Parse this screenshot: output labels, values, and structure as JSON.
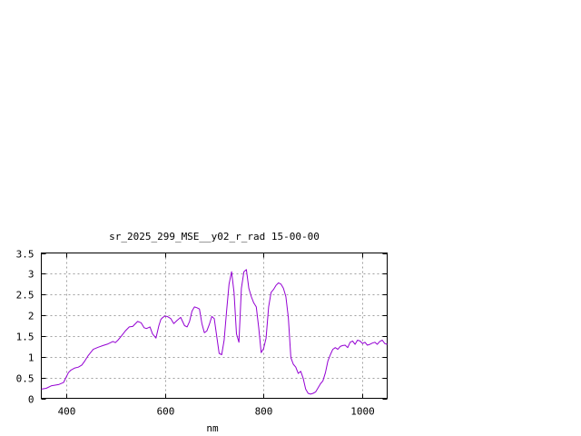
{
  "chart_data": {
    "type": "line",
    "title": "sr_2025_299_MSE__y02_r_rad 15-00-00",
    "xlabel": "nm",
    "ylabel": "",
    "xlim": [
      350,
      1050
    ],
    "ylim": [
      0,
      3.5
    ],
    "xticks": [
      400,
      600,
      800,
      1000
    ],
    "xtick_labels": [
      "400",
      "600",
      "800",
      "1000"
    ],
    "yticks": [
      0,
      0.5,
      1,
      1.5,
      2,
      2.5,
      3,
      3.5
    ],
    "ytick_labels": [
      "0",
      "0.5",
      "1",
      "1.5",
      "2",
      "2.5",
      "3",
      "3.5"
    ],
    "grid": true,
    "legend": "none",
    "series": [
      {
        "color": "#9400d3",
        "x": [
          350,
          360,
          370,
          385,
          395,
          400,
          405,
          410,
          418,
          425,
          432,
          438,
          445,
          455,
          465,
          475,
          485,
          495,
          500,
          505,
          512,
          520,
          528,
          535,
          545,
          552,
          558,
          563,
          570,
          575,
          582,
          588,
          592,
          596,
          600,
          605,
          612,
          618,
          625,
          632,
          640,
          645,
          650,
          655,
          660,
          665,
          670,
          675,
          680,
          685,
          690,
          695,
          700,
          705,
          710,
          715,
          720,
          725,
          730,
          735,
          740,
          745,
          750,
          755,
          760,
          765,
          770,
          775,
          780,
          785,
          790,
          795,
          800,
          805,
          810,
          815,
          820,
          825,
          830,
          835,
          840,
          845,
          850,
          855,
          860,
          865,
          870,
          875,
          880,
          885,
          890,
          895,
          900,
          905,
          910,
          915,
          920,
          925,
          930,
          935,
          940,
          945,
          950,
          955,
          960,
          965,
          970,
          975,
          980,
          985,
          990,
          995,
          1000,
          1005,
          1010,
          1015,
          1020,
          1025,
          1030,
          1035,
          1040,
          1045,
          1050
        ],
        "y": [
          0.22,
          0.24,
          0.3,
          0.33,
          0.38,
          0.5,
          0.62,
          0.68,
          0.73,
          0.75,
          0.8,
          0.9,
          1.03,
          1.18,
          1.23,
          1.27,
          1.31,
          1.37,
          1.34,
          1.4,
          1.5,
          1.62,
          1.72,
          1.73,
          1.85,
          1.82,
          1.7,
          1.68,
          1.72,
          1.55,
          1.45,
          1.75,
          1.9,
          1.95,
          1.98,
          1.97,
          1.92,
          1.8,
          1.88,
          1.95,
          1.75,
          1.72,
          1.85,
          2.1,
          2.2,
          2.18,
          2.15,
          1.8,
          1.58,
          1.62,
          1.78,
          1.97,
          1.92,
          1.5,
          1.08,
          1.05,
          1.4,
          2.1,
          2.75,
          3.05,
          2.55,
          1.55,
          1.35,
          2.65,
          3.05,
          3.1,
          2.65,
          2.45,
          2.3,
          2.2,
          1.7,
          1.1,
          1.2,
          1.45,
          2.2,
          2.55,
          2.62,
          2.72,
          2.78,
          2.75,
          2.65,
          2.45,
          1.95,
          0.98,
          0.82,
          0.75,
          0.6,
          0.65,
          0.48,
          0.22,
          0.12,
          0.1,
          0.12,
          0.15,
          0.25,
          0.35,
          0.42,
          0.62,
          0.9,
          1.05,
          1.18,
          1.22,
          1.18,
          1.25,
          1.27,
          1.28,
          1.22,
          1.35,
          1.38,
          1.3,
          1.4,
          1.38,
          1.32,
          1.35,
          1.28,
          1.3,
          1.33,
          1.35,
          1.3,
          1.37,
          1.4,
          1.32,
          1.3
        ]
      }
    ]
  }
}
